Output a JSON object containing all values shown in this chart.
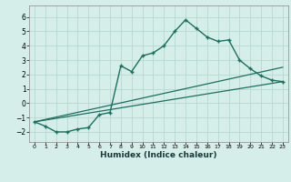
{
  "xlabel": "Humidex (Indice chaleur)",
  "background_color": "#d6eeea",
  "grid_color": "#b8d8d2",
  "line_color": "#1a7060",
  "xlim": [
    -0.5,
    23.5
  ],
  "ylim": [
    -2.7,
    6.8
  ],
  "xticks": [
    0,
    1,
    2,
    3,
    4,
    5,
    6,
    7,
    8,
    9,
    10,
    11,
    12,
    13,
    14,
    15,
    16,
    17,
    18,
    19,
    20,
    21,
    22,
    23
  ],
  "yticks": [
    -2,
    -1,
    0,
    1,
    2,
    3,
    4,
    5,
    6
  ],
  "curve1_x": [
    0,
    1,
    2,
    3,
    4,
    5,
    6,
    7,
    8,
    9,
    10,
    11,
    12,
    13,
    14,
    15,
    16,
    17,
    18,
    19,
    20,
    21,
    22,
    23
  ],
  "curve1_y": [
    -1.3,
    -1.6,
    -2.0,
    -2.0,
    -1.8,
    -1.7,
    -0.8,
    -0.65,
    2.6,
    2.2,
    3.3,
    3.5,
    4.0,
    5.0,
    5.8,
    5.2,
    4.6,
    4.3,
    4.4,
    3.0,
    2.4,
    1.9,
    1.6,
    1.5
  ],
  "curve2_x": [
    0,
    23
  ],
  "curve2_y": [
    -1.3,
    1.5
  ],
  "curve3_x": [
    0,
    23
  ],
  "curve3_y": [
    -1.3,
    2.5
  ]
}
